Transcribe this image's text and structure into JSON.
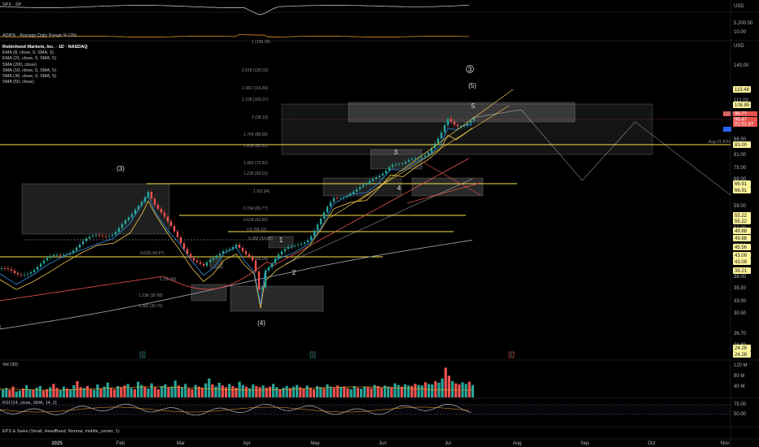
{
  "chart_data": {
    "type": "candlestick",
    "symbol_full": "Robinhood Markets, Inc. · 1D · NASDAQ",
    "currency": "USD",
    "indicators": [
      "EMA (8, close, 0, SMA, 5)",
      "EMA (21, close, 0, SMA, 5)",
      "SMA (200, close)",
      "SMA (10, close, 0, SMA, 5)",
      "SMA (30, close, 0, SMA, 5)",
      "SMA (50, close)"
    ],
    "top_panes": {
      "spx_label": "SPX · SP",
      "spx_axis": [
        "5,200.00"
      ],
      "adr_label": "ADR% · Average Daily Range % (20)",
      "adr_axis": [
        "10.00"
      ]
    },
    "price_axis_ticks": [
      "140.00",
      "112.00",
      "88.50",
      "81.00",
      "75.00",
      "69.00",
      "59.00",
      "52.00",
      "47.00",
      "43.00",
      "38.00",
      "35.50",
      "33.00",
      "30.50",
      "26.70",
      "24.80"
    ],
    "price_badges": [
      {
        "v": "119.48",
        "c": "#fff59d"
      },
      {
        "v": "108.85",
        "c": "#fff59d"
      },
      {
        "v": "83.00",
        "c": "#fff59d"
      },
      {
        "v": "66.91",
        "c": "#fff59d"
      },
      {
        "v": "66.91",
        "c": "#fff59d"
      },
      {
        "v": "55.22",
        "c": "#fff59d"
      },
      {
        "v": "55.22",
        "c": "#fff59d"
      },
      {
        "v": "49.88",
        "c": "#fff59d"
      },
      {
        "v": "49.88",
        "c": "#fff59d"
      },
      {
        "v": "45.56",
        "c": "#fff59d"
      },
      {
        "v": "43.09",
        "c": "#fff59d"
      },
      {
        "v": "43.09",
        "c": "#fff59d"
      },
      {
        "v": "39.21",
        "c": "#fff59d"
      },
      {
        "v": "24.28",
        "c": "#fff59d"
      },
      {
        "v": "24.28",
        "c": "#fff59d"
      }
    ],
    "last_price_labels": [
      "HOOD",
      "98.??",
      "96.47",
      "01:51:47"
    ],
    "fib_labels": [
      "1 (156.29)",
      "2.618 (130.32)",
      "2.382 (116.86)",
      "2.236 (109.37)",
      "2 (98.10)",
      "1.764 (88.08)",
      "1.618 (82.31)",
      "1.382 (73.92)",
      "1.236 (69.13)",
      "1 (62.04)",
      "0.764 (65.??)",
      "0.618 (62.06)",
      "0.5 (58.12)",
      "0.382 (54.68)",
      "0 (66.04)",
      "0.618 (42.5?)",
      "1 (36.30)",
      "1.236 (32.68)",
      "1.382 (30.70)"
    ],
    "ath_label": "Aug 21 ATH",
    "wave_labels": [
      "(3)",
      "(4)",
      "(5)",
      "1",
      "2",
      "3",
      "4",
      "5",
      "3"
    ],
    "time_axis": [
      "2025",
      "Feb",
      "Mar",
      "Apr",
      "May",
      "Jun",
      "Jul",
      "Aug",
      "Sep",
      "Oct",
      "Nov"
    ],
    "event_markers": [
      "S",
      "S",
      "E"
    ],
    "volume": {
      "label": "Vol (30)",
      "axis": [
        "120 M",
        "80 M",
        "40 M"
      ],
      "values_m": [
        30,
        35,
        28,
        40,
        22,
        25,
        33,
        45,
        30,
        28,
        36,
        42,
        25,
        30,
        38,
        50,
        35,
        28,
        40,
        33,
        30,
        45,
        60,
        38,
        35,
        42,
        30,
        28,
        48,
        33,
        40,
        55,
        36,
        30,
        42,
        38,
        44,
        50,
        35,
        30,
        58,
        46,
        40,
        33,
        52,
        38,
        30,
        42,
        48,
        36,
        40,
        62,
        44,
        38,
        50,
        34,
        30,
        46,
        40,
        36,
        52,
        70,
        48,
        40,
        54,
        44,
        38,
        50,
        42,
        36,
        58,
        46,
        40,
        34,
        48,
        42,
        38,
        44,
        36,
        40,
        50,
        38,
        30,
        36,
        42,
        34,
        40,
        46,
        38,
        32,
        44,
        36,
        30,
        42,
        38,
        34,
        48,
        40,
        36,
        44,
        38,
        40,
        34,
        30,
        42,
        36,
        32,
        40,
        38,
        34,
        46,
        42,
        36,
        44,
        40,
        38,
        52,
        46,
        40,
        48,
        44,
        42,
        50,
        46,
        44,
        56,
        50,
        48,
        60,
        54,
        70,
        110,
        80,
        60,
        52,
        48,
        56,
        50,
        58,
        46
      ]
    },
    "rsi": {
      "label": "RSI (14, close, SMA, 14, 2)",
      "axis": [
        "75.00",
        "50.00"
      ]
    },
    "eps_label": "EPS & Sales (Small, HeadBand, Normal, middle_center, 1)"
  }
}
